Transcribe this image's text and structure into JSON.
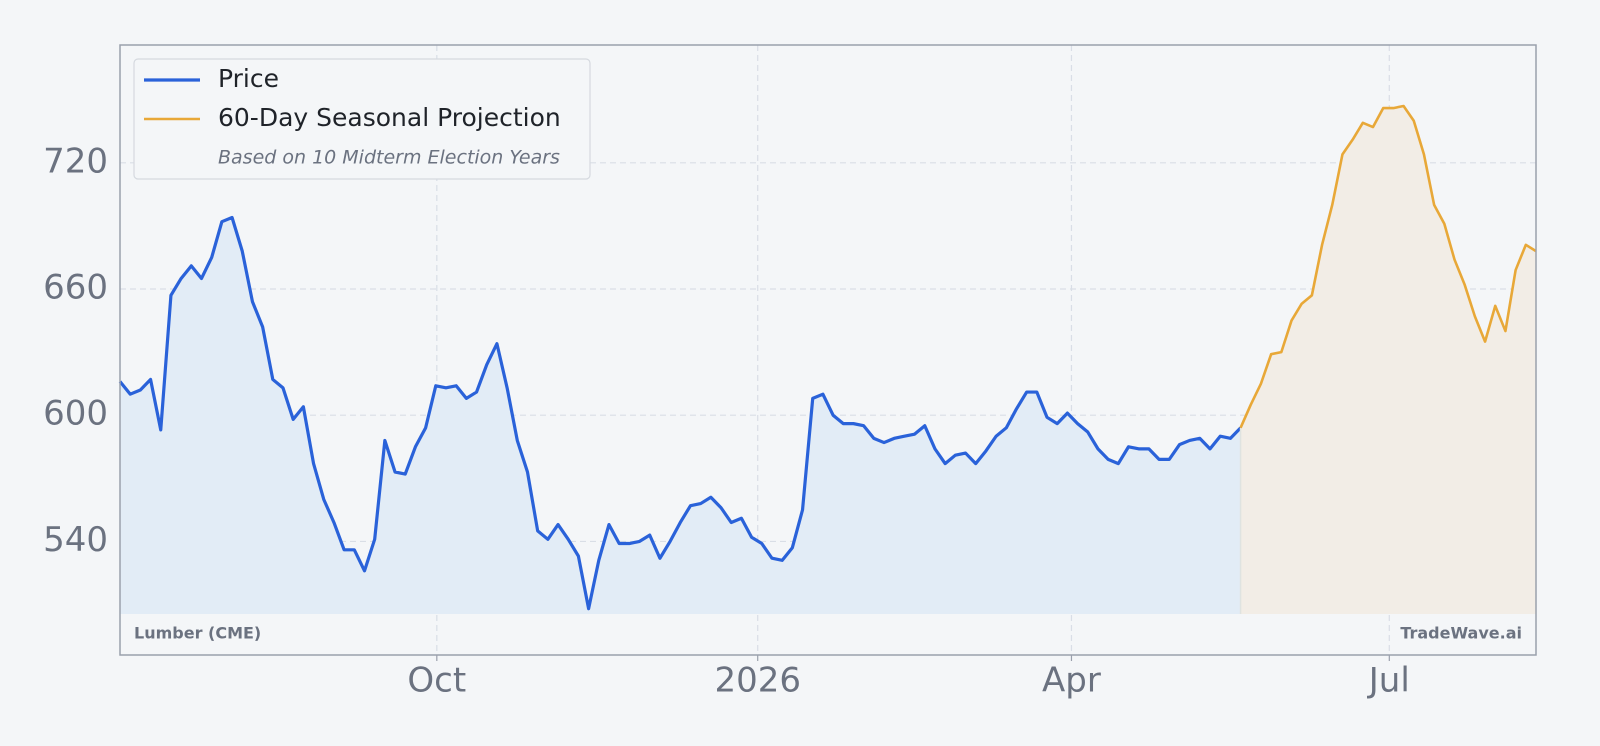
{
  "chart_data": {
    "type": "line",
    "legend_note": "Based on 10 Midterm Election Years",
    "source": "Lumber (CME)",
    "watermark": "TradeWave.ai",
    "xlim": [
      0,
      139
    ],
    "xticks": [
      {
        "value": 31.1,
        "label": "Oct"
      },
      {
        "value": 62.6,
        "label": "2026"
      },
      {
        "value": 93.4,
        "label": "Apr"
      },
      {
        "value": 124.6,
        "label": "Jul"
      }
    ],
    "ylim": [
      486,
      776
    ],
    "yticks": [
      540,
      600,
      660,
      720
    ],
    "grid": true,
    "legend": "upper left",
    "series": [
      {
        "name": "Price",
        "color": "#2a62d9",
        "values": [
          616,
          610,
          612,
          617,
          593,
          657,
          665,
          671,
          665,
          675,
          692,
          694,
          678,
          654,
          642,
          617,
          613,
          598,
          604,
          577,
          560,
          549,
          536,
          536,
          526,
          541,
          588,
          573,
          572,
          585,
          594,
          614,
          613,
          614,
          608,
          611,
          624,
          634,
          613,
          588,
          573,
          545,
          541,
          548,
          541,
          533,
          508,
          531,
          548,
          539,
          539,
          540,
          543,
          532,
          540,
          549,
          557,
          558,
          561,
          556,
          549,
          551,
          542,
          539,
          532,
          531,
          537,
          555,
          608,
          610,
          600,
          596,
          596,
          595,
          589,
          587,
          589,
          590,
          591,
          595,
          584,
          577,
          581,
          582,
          577,
          583,
          590,
          594,
          603,
          611,
          611,
          599,
          596,
          601,
          596,
          592,
          584,
          579,
          577,
          585,
          584,
          584,
          579,
          579,
          586,
          588,
          589,
          584,
          590,
          589,
          594,
          null,
          null,
          null,
          null,
          null,
          null,
          null,
          null,
          null,
          null,
          null,
          null,
          null,
          null,
          null,
          null,
          null,
          null,
          null,
          null,
          null,
          null,
          null,
          null,
          null,
          null,
          null,
          null,
          null
        ]
      },
      {
        "name": "60-Day Seasonal Projection",
        "color": "#e8a838",
        "values": [
          null,
          null,
          null,
          null,
          null,
          null,
          null,
          null,
          null,
          null,
          null,
          null,
          null,
          null,
          null,
          null,
          null,
          null,
          null,
          null,
          null,
          null,
          null,
          null,
          null,
          null,
          null,
          null,
          null,
          null,
          null,
          null,
          null,
          null,
          null,
          null,
          null,
          null,
          null,
          null,
          null,
          null,
          null,
          null,
          null,
          null,
          null,
          null,
          null,
          null,
          null,
          null,
          null,
          null,
          null,
          null,
          null,
          null,
          null,
          null,
          null,
          null,
          null,
          null,
          null,
          null,
          null,
          null,
          null,
          null,
          null,
          null,
          null,
          null,
          null,
          null,
          null,
          null,
          null,
          null,
          null,
          null,
          null,
          null,
          null,
          null,
          null,
          null,
          null,
          null,
          null,
          null,
          null,
          null,
          null,
          null,
          null,
          null,
          null,
          null,
          null,
          null,
          null,
          null,
          null,
          null,
          null,
          null,
          null,
          null,
          594,
          605,
          615,
          629,
          630,
          645,
          653,
          657,
          681,
          700,
          724,
          731,
          739,
          737,
          746,
          746,
          747,
          740,
          724,
          700,
          691,
          674,
          662,
          647,
          635,
          652,
          640,
          669,
          681,
          678
        ]
      }
    ]
  }
}
